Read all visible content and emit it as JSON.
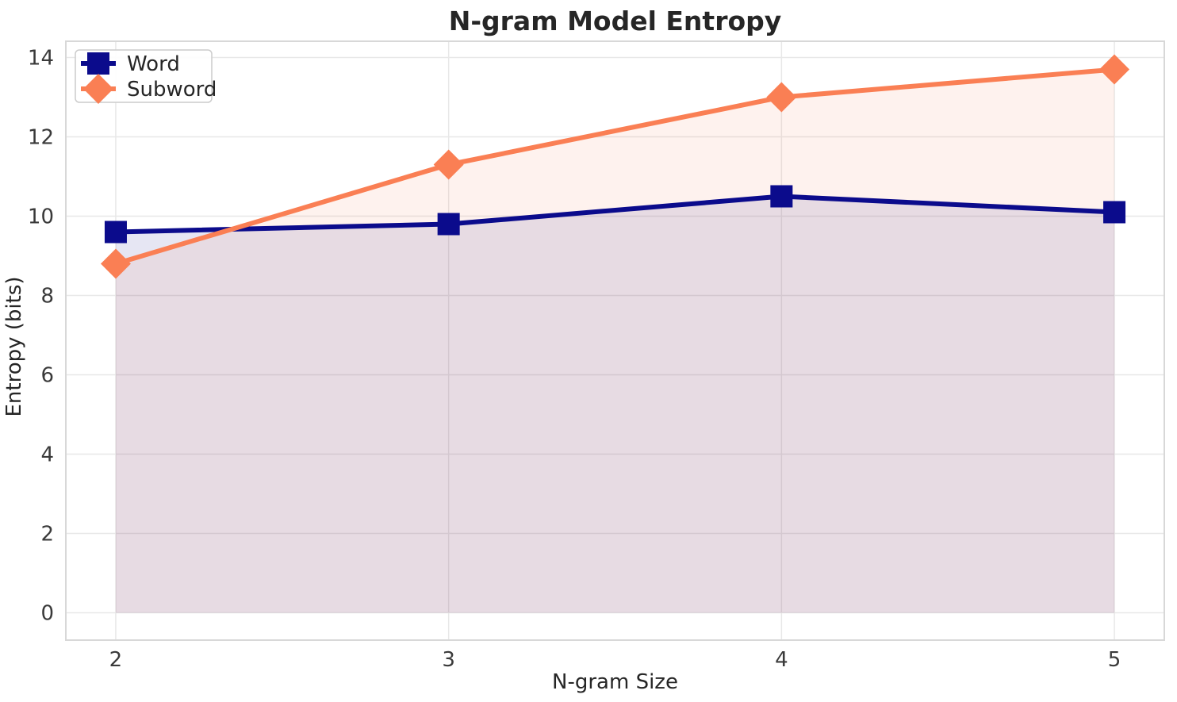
{
  "chart_data": {
    "type": "line",
    "title": "N-gram Model Entropy",
    "xlabel": "N-gram Size",
    "ylabel": "Entropy (bits)",
    "x": [
      2,
      3,
      4,
      5
    ],
    "series": [
      {
        "name": "Word",
        "values": [
          9.6,
          9.8,
          10.5,
          10.1
        ],
        "color": "#0b0b8c",
        "marker": "square",
        "area_fill": true,
        "fill_opacity": 0.1
      },
      {
        "name": "Subword",
        "values": [
          8.8,
          11.3,
          13.0,
          13.7
        ],
        "color": "#fa7f54",
        "marker": "diamond",
        "area_fill": true,
        "fill_opacity": 0.1
      }
    ],
    "xticks": [
      2,
      3,
      4,
      5
    ],
    "yticks": [
      0,
      2,
      4,
      6,
      8,
      10,
      12,
      14
    ],
    "xlim": [
      1.85,
      5.15
    ],
    "ylim": [
      -0.69,
      14.41
    ],
    "grid": true,
    "grid_color": "#e8e8e8",
    "spine_color": "#d8d8d8",
    "legend_position": "upper left"
  }
}
